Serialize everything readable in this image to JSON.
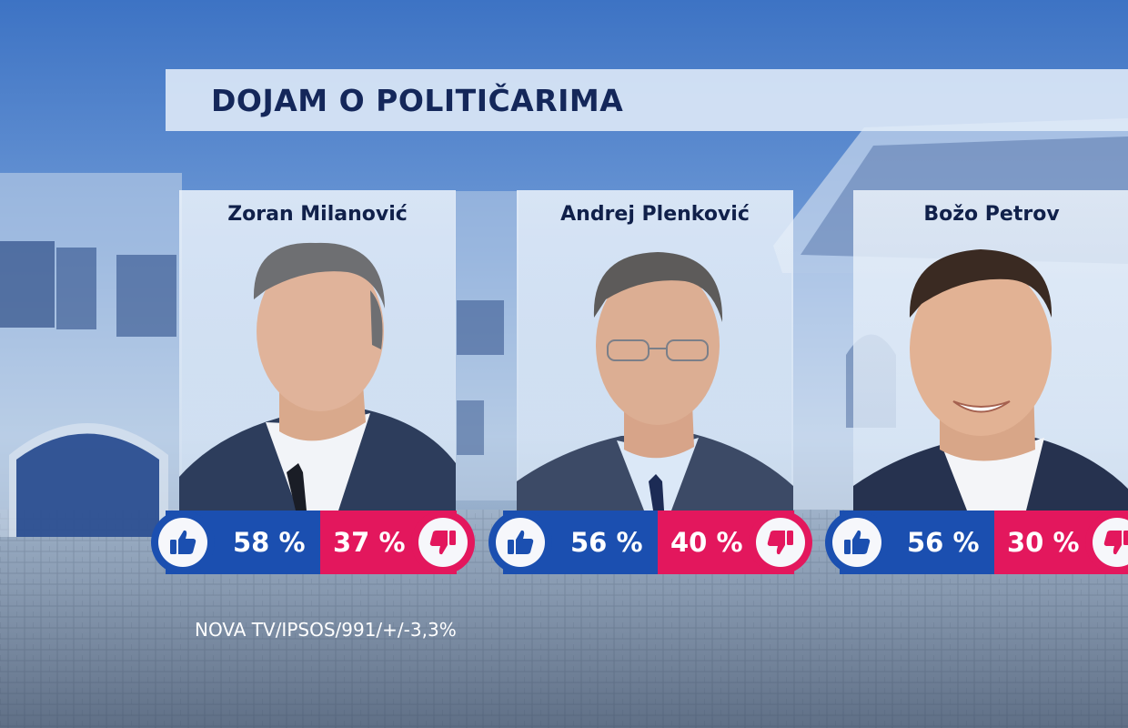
{
  "title": "DOJAM O POLITIČARIMA",
  "politicians": [
    {
      "name": "Zoran Milanović",
      "positive": "58 %",
      "negative": "37 %"
    },
    {
      "name": "Andrej Plenković",
      "positive": "56 %",
      "negative": "40 %"
    },
    {
      "name": "Božo Petrov",
      "positive": "56 %",
      "negative": "30 %"
    }
  ],
  "source": "NOVA TV/IPSOS/991/+/-3,3%",
  "icons": {
    "positive": "thumbs-up-icon",
    "negative": "thumbs-down-icon"
  },
  "colors": {
    "positive": "#1b4fb0",
    "negative": "#e3175d",
    "title": "#14275a"
  }
}
